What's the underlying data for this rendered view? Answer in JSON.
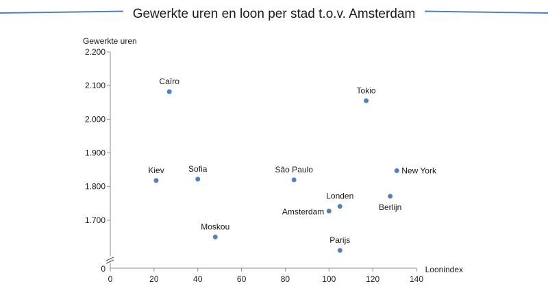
{
  "chart_data": {
    "type": "scatter",
    "title": "Gewerkte uren en loon per stad t.o.v. Amsterdam",
    "xlabel": "Loonindex",
    "ylabel": "Gewerkte uren",
    "xlim": [
      0,
      140
    ],
    "ylim": [
      1560,
      2200
    ],
    "y_axis_break": true,
    "y_axis_origin_label": "0",
    "x_ticks": [
      "0",
      "20",
      "40",
      "60",
      "80",
      "100",
      "120",
      "140"
    ],
    "y_ticks": [
      {
        "value": 1700,
        "label": "1.700"
      },
      {
        "value": 1800,
        "label": "1.800"
      },
      {
        "value": 1900,
        "label": "1.900"
      },
      {
        "value": 2000,
        "label": "2.000"
      },
      {
        "value": 2100,
        "label": "2.100"
      },
      {
        "value": 2200,
        "label": "2.200"
      }
    ],
    "grid": false,
    "legend": "none",
    "colors": {
      "marker": "#4f81bd",
      "title_rule": "#4f81bd",
      "axis": "#8c8c8c"
    },
    "points": [
      {
        "label": "Caïro",
        "x": 27,
        "y": 2082
      },
      {
        "label": "Tokio",
        "x": 117,
        "y": 2055
      },
      {
        "label": "Kiev",
        "x": 21,
        "y": 1818
      },
      {
        "label": "Sofia",
        "x": 40,
        "y": 1822
      },
      {
        "label": "São Paulo",
        "x": 84,
        "y": 1820
      },
      {
        "label": "New York",
        "x": 131,
        "y": 1847
      },
      {
        "label": "Berlijn",
        "x": 128,
        "y": 1771
      },
      {
        "label": "Londen",
        "x": 105,
        "y": 1741
      },
      {
        "label": "Amsterdam",
        "x": 100,
        "y": 1727
      },
      {
        "label": "Moskou",
        "x": 48,
        "y": 1650
      },
      {
        "label": "Parijs",
        "x": 105,
        "y": 1610
      }
    ]
  }
}
